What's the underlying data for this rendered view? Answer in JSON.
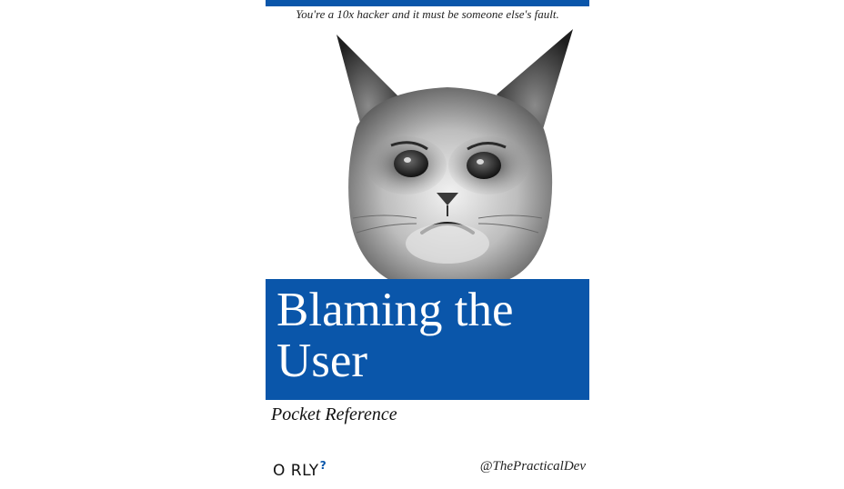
{
  "cover": {
    "tagline": "You're a 10x hacker and it must be someone else's fault.",
    "title_line1": "Blaming the",
    "title_line2": "User",
    "subtitle": "Pocket Reference",
    "publisher": "O RLY",
    "publisher_mark": "?",
    "author": "@ThePracticalDev",
    "animal": "grumpy-cat-illustration"
  },
  "colors": {
    "accent": "#0a56aa",
    "background": "#ffffff",
    "title_text": "#ffffff"
  }
}
